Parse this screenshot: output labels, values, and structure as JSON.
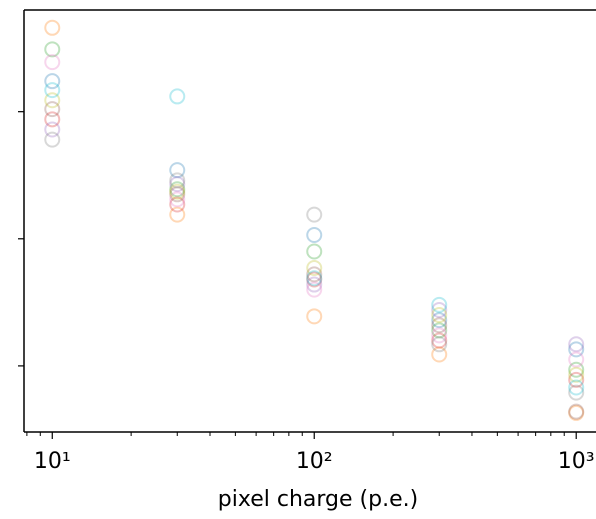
{
  "chart_data": {
    "type": "scatter",
    "xlabel": "pixel charge (p.e.)",
    "x": [
      10,
      30,
      100,
      300,
      1000
    ],
    "xscale": "log",
    "xlim": [
      7.8,
      1190
    ],
    "xticks": [
      {
        "value": 10,
        "label": "10¹"
      },
      {
        "value": 100,
        "label": "10²"
      },
      {
        "value": 1000,
        "label": "10³"
      }
    ],
    "xminorticks": [
      8,
      9,
      20,
      30,
      40,
      50,
      60,
      70,
      80,
      90,
      200,
      300,
      400,
      500,
      600,
      700,
      800,
      900
    ],
    "ylim": [
      0.48,
      3.8
    ],
    "yticks": [
      1,
      2,
      3
    ],
    "alpha": 0.3,
    "series": [
      {
        "color": "#1f77b4",
        "values": [
          3.24,
          2.54,
          2.03,
          1.36,
          1.13
        ]
      },
      {
        "color": "#ff7f0e",
        "values": [
          3.66,
          2.19,
          1.39,
          1.09,
          0.63
        ]
      },
      {
        "color": "#2ca02c",
        "values": [
          3.49,
          2.39,
          1.9,
          1.28,
          0.97
        ]
      },
      {
        "color": "#d62728",
        "values": [
          2.94,
          2.27,
          1.68,
          1.2,
          0.89
        ]
      },
      {
        "color": "#9467bd",
        "values": [
          2.86,
          2.43,
          1.64,
          1.44,
          1.17
        ]
      },
      {
        "color": "#8c564b",
        "values": [
          3.02,
          2.35,
          1.72,
          1.32,
          0.64
        ]
      },
      {
        "color": "#e377c2",
        "values": [
          3.39,
          2.31,
          1.6,
          1.24,
          1.05
        ]
      },
      {
        "color": "#7f7f7f",
        "values": [
          2.78,
          2.46,
          2.19,
          1.17,
          0.79
        ]
      },
      {
        "color": "#bcbd22",
        "values": [
          3.09,
          2.37,
          1.77,
          1.4,
          0.93
        ]
      },
      {
        "color": "#17becf",
        "values": [
          3.17,
          3.12,
          1.69,
          1.48,
          0.83
        ]
      }
    ]
  }
}
